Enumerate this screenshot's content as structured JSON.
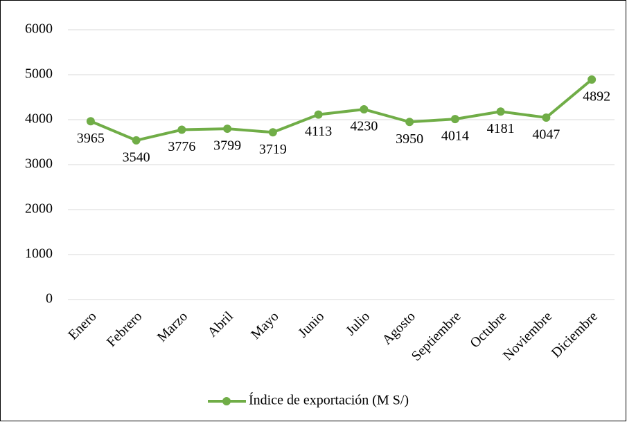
{
  "chart_data": {
    "type": "line",
    "categories": [
      "Enero",
      "Febrero",
      "Marzo",
      "Abril",
      "Mayo",
      "Junio",
      "Julio",
      "Agosto",
      "Septiembre",
      "Octubre",
      "Noviembre",
      "Diciembre"
    ],
    "series": [
      {
        "name": "Índice de exportación (M S/)",
        "color": "#70ad47",
        "values": [
          3965,
          3540,
          3776,
          3799,
          3719,
          4113,
          4230,
          3950,
          4014,
          4181,
          4047,
          4892
        ]
      }
    ],
    "ylim": [
      0,
      6000
    ],
    "yticks": [
      0,
      1000,
      2000,
      3000,
      4000,
      5000,
      6000
    ],
    "grid": true,
    "legend": "bottom"
  }
}
